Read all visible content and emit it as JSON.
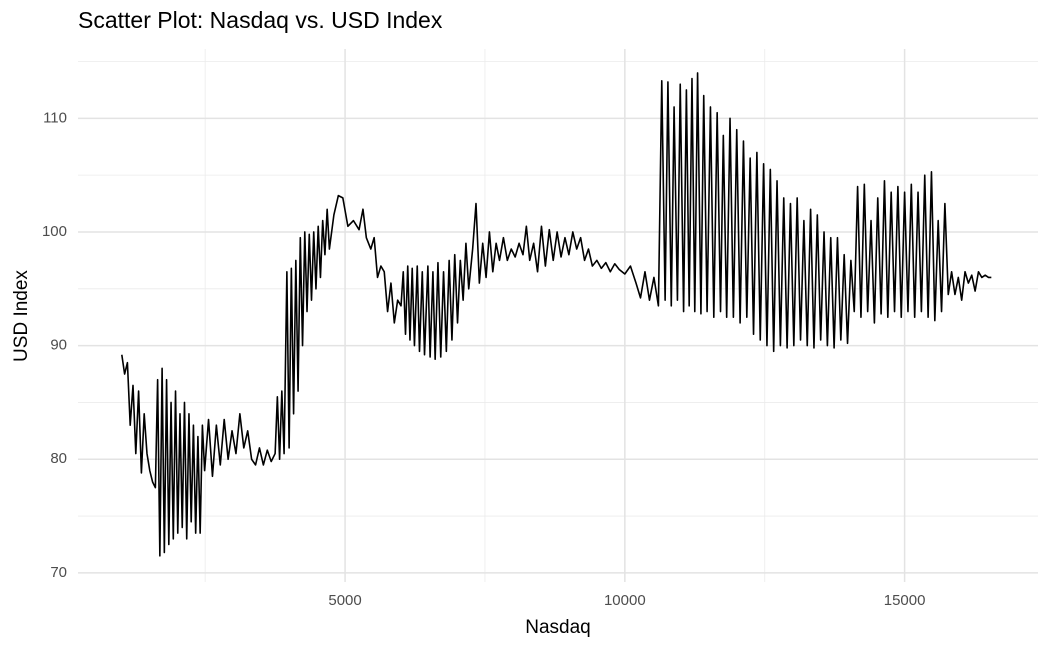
{
  "chart_data": {
    "type": "line",
    "title": "Scatter Plot: Nasdaq vs. USD Index",
    "x_label": "Nasdaq",
    "y_label": "USD Index",
    "xlim": [
      227,
      17384
    ],
    "ylim": [
      69.2,
      116.1
    ],
    "xticks": [
      5000,
      10000,
      15000
    ],
    "yticks": [
      70,
      80,
      90,
      100,
      110
    ],
    "x_minor_grid": [
      2500,
      7500,
      12500
    ],
    "y_minor_grid": [
      75,
      85,
      95,
      105,
      115
    ],
    "grid": true,
    "x": [
      1010,
      1060,
      1110,
      1160,
      1210,
      1260,
      1310,
      1360,
      1410,
      1460,
      1510,
      1560,
      1610,
      1650,
      1690,
      1730,
      1770,
      1810,
      1850,
      1890,
      1930,
      1970,
      2010,
      2050,
      2090,
      2130,
      2170,
      2210,
      2250,
      2290,
      2330,
      2370,
      2410,
      2450,
      2490,
      2560,
      2630,
      2700,
      2770,
      2840,
      2910,
      2980,
      3050,
      3120,
      3190,
      3260,
      3330,
      3400,
      3470,
      3540,
      3610,
      3680,
      3750,
      3790,
      3830,
      3870,
      3910,
      3960,
      4000,
      4040,
      4080,
      4120,
      4160,
      4200,
      4240,
      4280,
      4320,
      4360,
      4400,
      4440,
      4480,
      4520,
      4560,
      4600,
      4640,
      4680,
      4720,
      4800,
      4880,
      4960,
      5050,
      5150,
      5250,
      5320,
      5380,
      5460,
      5520,
      5580,
      5640,
      5700,
      5760,
      5820,
      5880,
      5940,
      6000,
      6040,
      6080,
      6120,
      6160,
      6200,
      6240,
      6290,
      6330,
      6380,
      6420,
      6480,
      6520,
      6570,
      6610,
      6660,
      6710,
      6760,
      6810,
      6860,
      6910,
      6960,
      7010,
      7060,
      7110,
      7160,
      7210,
      7280,
      7340,
      7400,
      7460,
      7520,
      7580,
      7640,
      7700,
      7760,
      7830,
      7900,
      7970,
      8040,
      8110,
      8180,
      8240,
      8300,
      8370,
      8440,
      8510,
      8580,
      8650,
      8720,
      8790,
      8860,
      8930,
      9000,
      9070,
      9140,
      9210,
      9280,
      9350,
      9420,
      9500,
      9580,
      9660,
      9740,
      9820,
      9900,
      10000,
      10100,
      10200,
      10280,
      10360,
      10440,
      10520,
      10600,
      10660,
      10720,
      10770,
      10830,
      10880,
      10940,
      10990,
      11050,
      11100,
      11150,
      11200,
      11250,
      11300,
      11360,
      11410,
      11470,
      11530,
      11590,
      11650,
      11710,
      11760,
      11820,
      11880,
      11940,
      12000,
      12060,
      12120,
      12180,
      12240,
      12300,
      12360,
      12420,
      12480,
      12540,
      12600,
      12660,
      12720,
      12780,
      12840,
      12900,
      12960,
      13020,
      13080,
      13140,
      13200,
      13260,
      13320,
      13380,
      13440,
      13500,
      13560,
      13620,
      13680,
      13740,
      13800,
      13860,
      13920,
      13980,
      14040,
      14100,
      14160,
      14220,
      14280,
      14340,
      14400,
      14460,
      14520,
      14580,
      14640,
      14700,
      14760,
      14820,
      14880,
      14940,
      15000,
      15060,
      15120,
      15180,
      15240,
      15300,
      15360,
      15420,
      15480,
      15540,
      15600,
      15660,
      15720,
      15780,
      15840,
      15900,
      15960,
      16020,
      16080,
      16140,
      16200,
      16260,
      16320,
      16380,
      16440,
      16500,
      16550
    ],
    "series": [
      {
        "color": "#000000",
        "values": [
          89.2,
          87.5,
          88.5,
          83,
          86.5,
          80.5,
          86,
          78.8,
          84,
          80.5,
          79,
          78,
          77.5,
          87,
          71.5,
          88,
          71.8,
          87,
          72.5,
          85,
          73,
          86,
          73.5,
          84,
          74,
          85,
          73,
          84,
          74.5,
          83,
          73.5,
          82,
          73.5,
          83,
          79,
          83.5,
          78.5,
          83,
          79.5,
          83.5,
          80,
          82.5,
          80.5,
          84,
          81,
          82.5,
          80,
          79.5,
          81,
          79.5,
          80.8,
          79.8,
          80.5,
          85.5,
          80,
          86,
          80.5,
          96.5,
          81,
          96.8,
          84,
          97.5,
          86,
          99.5,
          90,
          100,
          93,
          99.8,
          94,
          100,
          95,
          100.5,
          96,
          101,
          98,
          102,
          98.5,
          101.5,
          103.2,
          103,
          100.5,
          101,
          100.2,
          102,
          99.5,
          98.5,
          99.5,
          96,
          97,
          96.5,
          93,
          95.5,
          92,
          94,
          93.5,
          96.5,
          91,
          97,
          90.5,
          96.8,
          90,
          97,
          89.5,
          96.5,
          89.2,
          97,
          89,
          96.5,
          88.8,
          97.3,
          89,
          96.5,
          89.5,
          97.5,
          90.5,
          98,
          92,
          97.5,
          94,
          99,
          95,
          98.5,
          102.5,
          95.5,
          99,
          96,
          100,
          96.5,
          99,
          97.5,
          99.5,
          97.5,
          98.5,
          97.8,
          99,
          98,
          100.5,
          97.5,
          99,
          96.5,
          100.5,
          97,
          100.2,
          97.5,
          100,
          97.8,
          99.5,
          98,
          100,
          98.5,
          99.5,
          97.5,
          98.5,
          97,
          97.5,
          96.8,
          97.3,
          96.5,
          97.2,
          96.7,
          96.3,
          97,
          95.5,
          94.2,
          96.5,
          94,
          96,
          93.5,
          113.3,
          94,
          113.2,
          93.5,
          111,
          94,
          113,
          93,
          112.5,
          93.5,
          113.5,
          93,
          114,
          92.8,
          112,
          93,
          111,
          92.5,
          110.5,
          93,
          108.5,
          92.5,
          110,
          92.5,
          109,
          92,
          108,
          92.5,
          106.5,
          91,
          107,
          90.5,
          106,
          90,
          105.5,
          89.5,
          104.5,
          90,
          103,
          89.8,
          102.5,
          90,
          103,
          90.5,
          101,
          90,
          102,
          89.8,
          101.5,
          90.5,
          100,
          90,
          99.5,
          89.8,
          99.5,
          90.5,
          98,
          90.2,
          97.5,
          93,
          104,
          92.5,
          104.2,
          93,
          101,
          92,
          103,
          92.8,
          104.5,
          92.5,
          103.5,
          93,
          104,
          92.5,
          103.5,
          93,
          104.2,
          92.5,
          103.5,
          93,
          105,
          92.5,
          105.3,
          92.2,
          101,
          93,
          102.5,
          94.5,
          96.5,
          94.5,
          96,
          94,
          96.5,
          95.5,
          96.2,
          94.8,
          96.5,
          96,
          96.2,
          96,
          96
        ]
      }
    ]
  }
}
